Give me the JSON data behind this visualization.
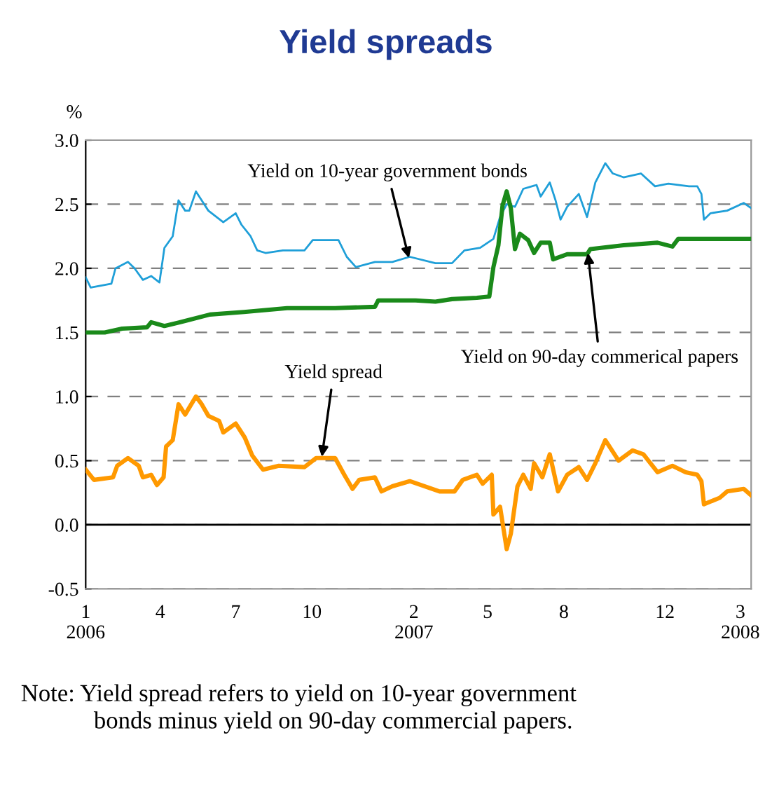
{
  "chart_data": {
    "type": "line",
    "title": "Yield spreads",
    "ylabel": "%",
    "xlim": [
      "2006-01-01",
      "2008-03-14"
    ],
    "ylim": [
      -0.5,
      3.0
    ],
    "yticks": [
      {
        "value": -0.5,
        "label": "-0.5"
      },
      {
        "value": 0,
        "label": "0.0"
      },
      {
        "value": 0.5,
        "label": "0.5"
      },
      {
        "value": 1.0,
        "label": "1.0"
      },
      {
        "value": 1.5,
        "label": "1.5"
      },
      {
        "value": 2.0,
        "label": "2.0"
      },
      {
        "value": 2.5,
        "label": "2.5"
      },
      {
        "value": 3.0,
        "label": "3.0"
      }
    ],
    "xticks": [
      {
        "value": "2006-01-01",
        "label": "1\n2006"
      },
      {
        "value": "2006-04-01",
        "label": "4"
      },
      {
        "value": "2006-07-01",
        "label": "7"
      },
      {
        "value": "2006-10-01",
        "label": "10"
      },
      {
        "value": "2007-02-01",
        "label": "2\n2007"
      },
      {
        "value": "2007-05-01",
        "label": "5"
      },
      {
        "value": "2007-08-01",
        "label": "8"
      },
      {
        "value": "2007-12-01",
        "label": "12"
      },
      {
        "value": "2008-03-01",
        "label": "3\n2008"
      }
    ],
    "grid": "y",
    "marker": "none",
    "line_style": "solid",
    "ref_lines": [
      {
        "axis": "y",
        "value": 0,
        "color": "#000000",
        "line_style": "solid"
      }
    ],
    "series": [
      {
        "color": "#1f9fd8",
        "x": [
          "2006-01-01",
          "2006-01-07",
          "2006-02-01",
          "2006-02-06",
          "2006-02-21",
          "2006-03-01",
          "2006-03-11",
          "2006-03-21",
          "2006-03-31",
          "2006-04-06",
          "2006-04-16",
          "2006-04-23",
          "2006-05-01",
          "2006-05-06",
          "2006-05-14",
          "2006-05-21",
          "2006-05-29",
          "2006-06-16",
          "2006-07-01",
          "2006-07-08",
          "2006-07-19",
          "2006-07-27",
          "2006-08-06",
          "2006-08-27",
          "2006-09-22",
          "2006-10-02",
          "2006-11-02",
          "2006-11-12",
          "2006-11-23",
          "2006-12-16",
          "2007-01-06",
          "2007-01-27",
          "2007-02-27",
          "2007-03-19",
          "2007-04-03",
          "2007-04-22",
          "2007-05-08",
          "2007-05-16",
          "2007-05-24",
          "2007-06-03",
          "2007-06-13",
          "2007-06-29",
          "2007-07-04",
          "2007-07-15",
          "2007-07-22",
          "2007-07-28",
          "2007-08-05",
          "2007-08-19",
          "2007-08-29",
          "2007-09-08",
          "2007-09-20",
          "2007-09-29",
          "2007-10-12",
          "2007-11-02",
          "2007-11-19",
          "2007-12-05",
          "2007-12-30",
          "2008-01-09",
          "2008-01-14",
          "2008-01-17",
          "2008-01-25",
          "2008-02-14",
          "2008-03-05",
          "2008-03-14"
        ],
        "values": [
          1.93,
          1.85,
          1.88,
          2.0,
          2.05,
          2.0,
          1.91,
          1.94,
          1.89,
          2.16,
          2.25,
          2.53,
          2.45,
          2.45,
          2.6,
          2.53,
          2.45,
          2.36,
          2.43,
          2.34,
          2.25,
          2.14,
          2.12,
          2.14,
          2.14,
          2.22,
          2.22,
          2.09,
          2.01,
          2.05,
          2.05,
          2.09,
          2.04,
          2.04,
          2.14,
          2.16,
          2.23,
          2.4,
          2.5,
          2.48,
          2.62,
          2.65,
          2.56,
          2.67,
          2.53,
          2.38,
          2.48,
          2.58,
          2.4,
          2.67,
          2.82,
          2.74,
          2.71,
          2.74,
          2.64,
          2.66,
          2.64,
          2.64,
          2.58,
          2.38,
          2.43,
          2.45,
          2.51,
          2.47
        ]
      },
      {
        "color": "#1a8a1a",
        "x": [
          "2006-01-01",
          "2006-01-24",
          "2006-02-14",
          "2006-03-16",
          "2006-03-21",
          "2006-04-06",
          "2006-05-01",
          "2006-05-31",
          "2006-07-11",
          "2006-09-01",
          "2006-10-29",
          "2006-12-16",
          "2006-12-20",
          "2007-02-03",
          "2007-02-27",
          "2007-03-19",
          "2007-04-18",
          "2007-05-03",
          "2007-05-08",
          "2007-05-14",
          "2007-05-19",
          "2007-05-24",
          "2007-05-29",
          "2007-06-03",
          "2007-06-09",
          "2007-06-19",
          "2007-06-26",
          "2007-07-04",
          "2007-07-15",
          "2007-07-19",
          "2007-08-05",
          "2007-08-29",
          "2007-09-02",
          "2007-10-12",
          "2007-11-22",
          "2007-12-10",
          "2007-12-17",
          "2008-01-25",
          "2008-03-14"
        ],
        "values": [
          1.5,
          1.5,
          1.53,
          1.54,
          1.58,
          1.55,
          1.59,
          1.64,
          1.66,
          1.69,
          1.69,
          1.7,
          1.75,
          1.75,
          1.74,
          1.76,
          1.77,
          1.78,
          2.01,
          2.18,
          2.49,
          2.6,
          2.47,
          2.15,
          2.27,
          2.22,
          2.12,
          2.2,
          2.2,
          2.07,
          2.11,
          2.11,
          2.15,
          2.18,
          2.2,
          2.17,
          2.23,
          2.23,
          2.23
        ]
      },
      {
        "color": "#ff9900",
        "x": [
          "2006-01-01",
          "2006-01-11",
          "2006-02-03",
          "2006-02-08",
          "2006-02-21",
          "2006-03-06",
          "2006-03-11",
          "2006-03-21",
          "2006-03-28",
          "2006-04-05",
          "2006-04-08",
          "2006-04-16",
          "2006-04-23",
          "2006-05-01",
          "2006-05-14",
          "2006-05-21",
          "2006-05-29",
          "2006-06-11",
          "2006-06-16",
          "2006-07-01",
          "2006-07-12",
          "2006-07-21",
          "2006-08-03",
          "2006-08-22",
          "2006-09-22",
          "2006-10-06",
          "2006-10-29",
          "2006-11-09",
          "2006-11-19",
          "2006-11-27",
          "2006-12-16",
          "2006-12-24",
          "2007-01-06",
          "2007-01-27",
          "2007-03-04",
          "2007-03-22",
          "2007-04-01",
          "2007-04-18",
          "2007-04-25",
          "2007-05-06",
          "2007-05-08",
          "2007-05-16",
          "2007-05-24",
          "2007-05-29",
          "2007-06-06",
          "2007-06-13",
          "2007-06-22",
          "2007-06-26",
          "2007-07-06",
          "2007-07-15",
          "2007-07-25",
          "2007-08-05",
          "2007-08-19",
          "2007-08-29",
          "2007-09-08",
          "2007-09-20",
          "2007-10-06",
          "2007-10-23",
          "2007-11-05",
          "2007-11-22",
          "2007-12-10",
          "2007-12-26",
          "2008-01-09",
          "2008-01-14",
          "2008-01-17",
          "2008-02-05",
          "2008-02-14",
          "2008-03-05",
          "2008-03-14"
        ],
        "values": [
          0.43,
          0.35,
          0.37,
          0.46,
          0.52,
          0.46,
          0.37,
          0.39,
          0.31,
          0.37,
          0.61,
          0.66,
          0.94,
          0.86,
          1.0,
          0.94,
          0.85,
          0.81,
          0.72,
          0.79,
          0.68,
          0.54,
          0.43,
          0.46,
          0.45,
          0.52,
          0.52,
          0.39,
          0.28,
          0.35,
          0.37,
          0.26,
          0.3,
          0.34,
          0.26,
          0.26,
          0.35,
          0.39,
          0.32,
          0.39,
          0.08,
          0.14,
          -0.19,
          -0.07,
          0.3,
          0.39,
          0.28,
          0.48,
          0.37,
          0.55,
          0.26,
          0.39,
          0.45,
          0.35,
          0.48,
          0.66,
          0.5,
          0.58,
          0.55,
          0.41,
          0.46,
          0.41,
          0.39,
          0.34,
          0.16,
          0.21,
          0.26,
          0.28,
          0.23
        ]
      }
    ],
    "annotations": [
      {
        "text": "Yield on 10-year government bonds",
        "x": "2007-01-26",
        "y": 2.08
      },
      {
        "text": "Yield on 90-day commerical papers",
        "x": "2007-08-30",
        "y": 2.12
      },
      {
        "text": "Yield spread",
        "x": "2006-10-13",
        "y": 0.53
      },
      "Note: Yield spread refers to yield on 10-year government\n            bonds minus yield on 90-day commercial papers."
    ]
  }
}
